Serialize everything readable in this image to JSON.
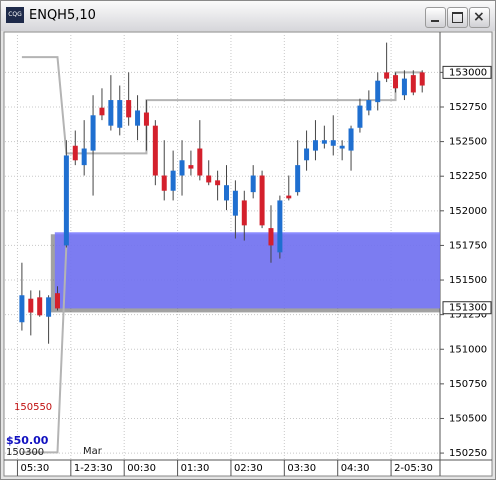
{
  "window": {
    "title": "ENQH5,10",
    "icon": "CQG"
  },
  "chart_data": {
    "type": "candlestick",
    "x": [
      0,
      1,
      2,
      3,
      4,
      5,
      6,
      7,
      8,
      9,
      10,
      11,
      12,
      13,
      14,
      15,
      16,
      17,
      18,
      19,
      20,
      21,
      22,
      23,
      24,
      25,
      26,
      27,
      28,
      29,
      30,
      31,
      32,
      33,
      34,
      35,
      36,
      37,
      38,
      39,
      40,
      41,
      42,
      43,
      44,
      45
    ],
    "open": [
      151195,
      151365,
      151375,
      151235,
      151405,
      151750,
      152470,
      152330,
      152435,
      152745,
      152615,
      152600,
      152800,
      152615,
      152710,
      152615,
      152255,
      152145,
      152255,
      152330,
      152450,
      152255,
      152220,
      152075,
      151965,
      152075,
      152135,
      152255,
      151875,
      151700,
      152110,
      152135,
      152365,
      152435,
      152485,
      152470,
      152450,
      152435,
      152600,
      152725,
      152785,
      153000,
      152980,
      152835,
      152980,
      153000
    ],
    "high": [
      151625,
      151425,
      151425,
      151390,
      151455,
      152510,
      152580,
      152655,
      152835,
      152885,
      152980,
      152905,
      153000,
      152835,
      152800,
      152655,
      152510,
      152435,
      152510,
      152435,
      152655,
      152365,
      152290,
      152330,
      152220,
      152145,
      152330,
      152290,
      152040,
      152110,
      152255,
      152510,
      152580,
      152655,
      152615,
      152690,
      152510,
      152615,
      152810,
      152870,
      153000,
      153215,
      153000,
      153015,
      153015,
      153015
    ],
    "low": [
      151135,
      151100,
      151235,
      151040,
      151280,
      151735,
      152330,
      152255,
      152110,
      152655,
      152580,
      152545,
      152615,
      152510,
      152435,
      152185,
      152075,
      152075,
      152110,
      152255,
      152220,
      152185,
      152075,
      152005,
      151800,
      151785,
      152090,
      151875,
      151625,
      151655,
      152075,
      152110,
      152290,
      152365,
      152450,
      152400,
      152365,
      152290,
      152565,
      152690,
      152725,
      152930,
      152855,
      152800,
      152835,
      152855
    ],
    "close": [
      151390,
      151265,
      151245,
      151375,
      151295,
      152400,
      152365,
      152450,
      152690,
      152690,
      152800,
      152800,
      152675,
      152725,
      152615,
      152255,
      152145,
      152290,
      152365,
      152305,
      152255,
      152205,
      152185,
      152185,
      152145,
      151895,
      152255,
      151895,
      151750,
      152075,
      152090,
      152330,
      152450,
      152510,
      152510,
      152510,
      152470,
      152595,
      152760,
      152800,
      152940,
      152955,
      152885,
      152955,
      152855,
      152905
    ],
    "up_color": "#1f6fd0",
    "down_color": "#d4202c",
    "lines": [
      {
        "color": "#b4b4b4",
        "x": [
          0,
          4,
          5,
          14,
          14,
          42,
          42,
          45
        ],
        "values": [
          153110,
          153110,
          152415,
          152415,
          152800,
          152800,
          153000,
          153000
        ]
      },
      {
        "color": "#b4b4b4",
        "x": [
          0,
          4,
          5
        ],
        "values": [
          150255,
          150255,
          151750
        ]
      }
    ],
    "zone": {
      "from": 3.7,
      "top": 151845,
      "bottom": 151295,
      "color": "#7676ff"
    },
    "xlim": [
      -1.9,
      47
    ],
    "ylim": [
      150200,
      153270
    ],
    "yticks": [
      153000,
      152750,
      152500,
      152250,
      152000,
      151750,
      151500,
      151250,
      151000,
      150750,
      150500,
      150250
    ],
    "xticks": [
      {
        "value": -0.5,
        "label": "05:30"
      },
      {
        "value": 5.5,
        "label": "1-23:30"
      },
      {
        "value": 11.5,
        "label": "00:30"
      },
      {
        "value": 17.5,
        "label": "01:30"
      },
      {
        "value": 23.5,
        "label": "02:30"
      },
      {
        "value": 29.5,
        "label": "03:30"
      },
      {
        "value": 35.5,
        "label": "04:30"
      },
      {
        "value": 41.5,
        "label": "2-05:30"
      }
    ],
    "price_markers": [
      {
        "value": 153000,
        "label": "153000"
      },
      {
        "value": 151300,
        "label": "151300"
      }
    ],
    "annotations": [
      {
        "text": "150550",
        "color": "#c01010"
      },
      {
        "text": "$50.00",
        "color": "#1010c0"
      },
      {
        "text": "150300",
        "color": "#202020"
      },
      {
        "text": "Mar",
        "color": "#202020"
      }
    ],
    "grid": true
  }
}
